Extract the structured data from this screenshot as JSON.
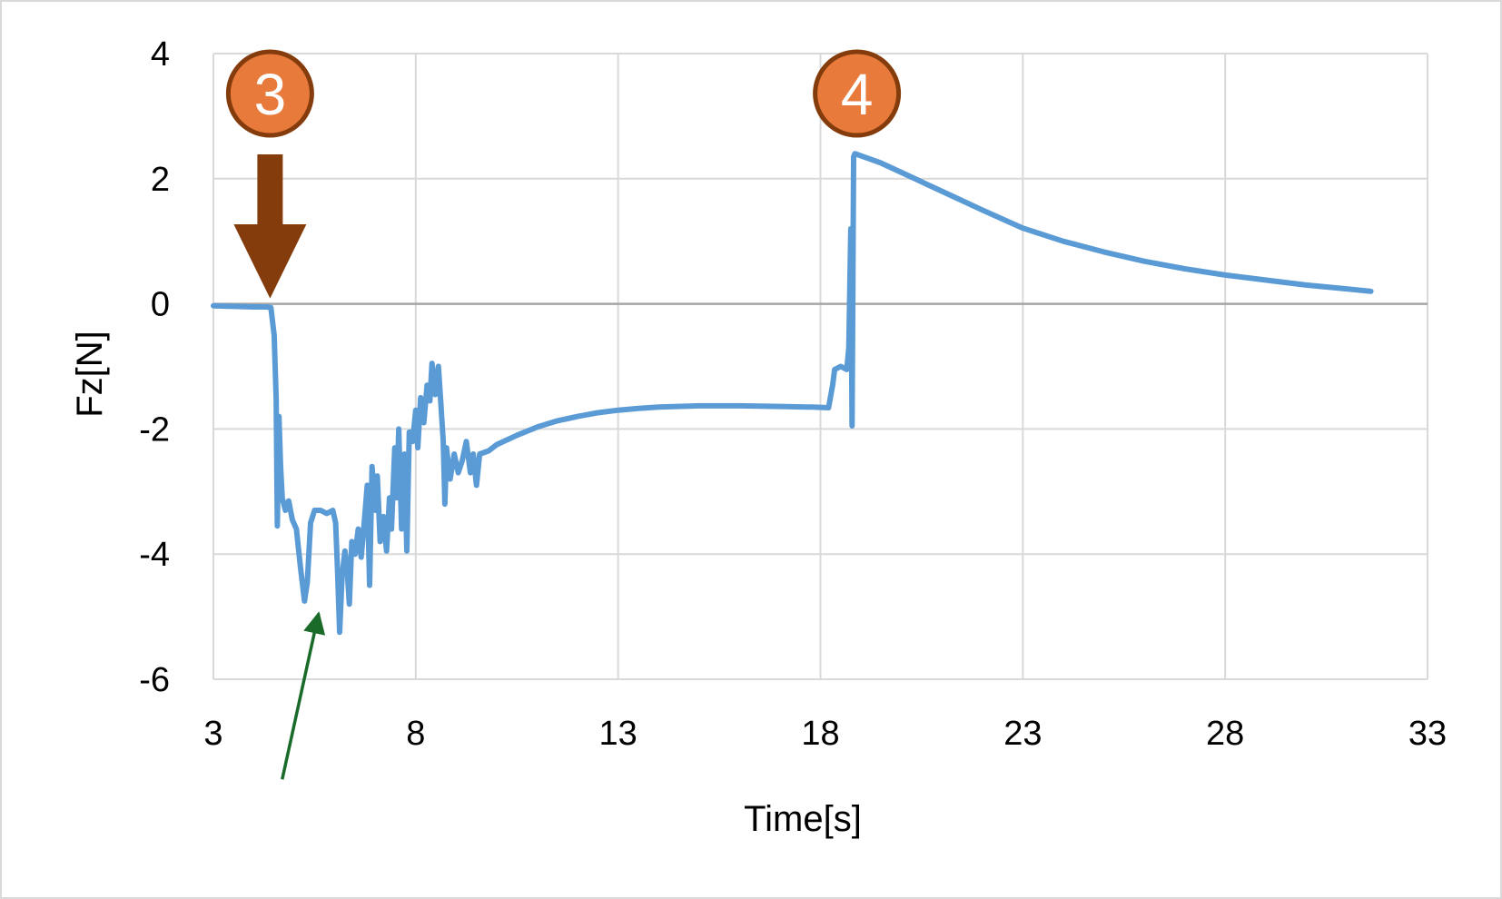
{
  "chart_data": {
    "type": "line",
    "title": "",
    "xlabel": "Time[s]",
    "ylabel": "Fz[N]",
    "xlim": [
      3,
      33
    ],
    "ylim": [
      -6,
      4
    ],
    "x_ticks": [
      "3",
      "8",
      "13",
      "18",
      "23",
      "28",
      "33"
    ],
    "y_ticks": [
      "4",
      "2",
      "0",
      "-2",
      "-4",
      "-6"
    ],
    "grid": true,
    "legend": "none",
    "series": [
      {
        "color": "#5b9bd5",
        "points": [
          [
            3.0,
            -0.03
          ],
          [
            3.5,
            -0.04
          ],
          [
            4.0,
            -0.05
          ],
          [
            4.3,
            -0.05
          ],
          [
            4.42,
            -0.06
          ],
          [
            4.5,
            -0.5
          ],
          [
            4.55,
            -1.5
          ],
          [
            4.58,
            -3.55
          ],
          [
            4.62,
            -1.8
          ],
          [
            4.66,
            -2.6
          ],
          [
            4.7,
            -3.1
          ],
          [
            4.78,
            -3.3
          ],
          [
            4.86,
            -3.15
          ],
          [
            4.95,
            -3.45
          ],
          [
            5.05,
            -3.6
          ],
          [
            5.15,
            -4.2
          ],
          [
            5.25,
            -4.75
          ],
          [
            5.32,
            -4.45
          ],
          [
            5.4,
            -3.5
          ],
          [
            5.5,
            -3.3
          ],
          [
            5.65,
            -3.3
          ],
          [
            5.8,
            -3.35
          ],
          [
            5.95,
            -3.3
          ],
          [
            6.02,
            -3.5
          ],
          [
            6.07,
            -4.3
          ],
          [
            6.12,
            -5.25
          ],
          [
            6.18,
            -4.35
          ],
          [
            6.25,
            -3.95
          ],
          [
            6.3,
            -4.2
          ],
          [
            6.36,
            -4.8
          ],
          [
            6.42,
            -3.8
          ],
          [
            6.5,
            -4.0
          ],
          [
            6.58,
            -3.6
          ],
          [
            6.65,
            -4.05
          ],
          [
            6.72,
            -3.55
          ],
          [
            6.8,
            -2.9
          ],
          [
            6.86,
            -4.5
          ],
          [
            6.92,
            -2.6
          ],
          [
            7.0,
            -3.3
          ],
          [
            7.05,
            -2.75
          ],
          [
            7.12,
            -3.8
          ],
          [
            7.2,
            -3.4
          ],
          [
            7.28,
            -3.95
          ],
          [
            7.35,
            -3.1
          ],
          [
            7.4,
            -3.6
          ],
          [
            7.48,
            -2.3
          ],
          [
            7.53,
            -3.1
          ],
          [
            7.58,
            -2.0
          ],
          [
            7.65,
            -3.6
          ],
          [
            7.72,
            -2.4
          ],
          [
            7.78,
            -3.95
          ],
          [
            7.84,
            -2.05
          ],
          [
            7.92,
            -2.2
          ],
          [
            8.0,
            -1.7
          ],
          [
            8.05,
            -2.3
          ],
          [
            8.12,
            -1.5
          ],
          [
            8.2,
            -1.9
          ],
          [
            8.28,
            -1.3
          ],
          [
            8.35,
            -1.55
          ],
          [
            8.4,
            -0.95
          ],
          [
            8.48,
            -1.45
          ],
          [
            8.56,
            -1.0
          ],
          [
            8.62,
            -1.6
          ],
          [
            8.68,
            -2.2
          ],
          [
            8.72,
            -3.2
          ],
          [
            8.76,
            -2.3
          ],
          [
            8.85,
            -2.8
          ],
          [
            8.95,
            -2.4
          ],
          [
            9.05,
            -2.7
          ],
          [
            9.15,
            -2.5
          ],
          [
            9.25,
            -2.2
          ],
          [
            9.35,
            -2.7
          ],
          [
            9.42,
            -2.4
          ],
          [
            9.5,
            -2.9
          ],
          [
            9.58,
            -2.4
          ],
          [
            9.8,
            -2.35
          ],
          [
            10.0,
            -2.25
          ],
          [
            10.5,
            -2.1
          ],
          [
            11.0,
            -1.97
          ],
          [
            11.5,
            -1.87
          ],
          [
            12.0,
            -1.8
          ],
          [
            12.5,
            -1.74
          ],
          [
            13.0,
            -1.7
          ],
          [
            13.5,
            -1.67
          ],
          [
            14.0,
            -1.65
          ],
          [
            15.0,
            -1.63
          ],
          [
            16.0,
            -1.63
          ],
          [
            17.0,
            -1.64
          ],
          [
            17.8,
            -1.65
          ],
          [
            18.2,
            -1.66
          ],
          [
            18.3,
            -1.3
          ],
          [
            18.35,
            -1.05
          ],
          [
            18.5,
            -1.0
          ],
          [
            18.65,
            -1.05
          ],
          [
            18.7,
            -0.7
          ],
          [
            18.75,
            1.2
          ],
          [
            18.78,
            -1.95
          ],
          [
            18.82,
            2.35
          ],
          [
            18.85,
            2.4
          ],
          [
            19.5,
            2.25
          ],
          [
            20.0,
            2.1
          ],
          [
            21.0,
            1.8
          ],
          [
            22.0,
            1.5
          ],
          [
            23.0,
            1.21
          ],
          [
            24.0,
            1.0
          ],
          [
            25.0,
            0.83
          ],
          [
            26.0,
            0.68
          ],
          [
            27.0,
            0.56
          ],
          [
            28.0,
            0.46
          ],
          [
            29.0,
            0.38
          ],
          [
            30.0,
            0.3
          ],
          [
            31.0,
            0.24
          ],
          [
            31.6,
            0.2
          ]
        ]
      }
    ],
    "annotations": [
      {
        "label": "3",
        "kind": "marker-with-down-arrow",
        "x": 4.4,
        "color": "#e87a3c",
        "arrow_color": "#843c0c"
      },
      {
        "label": "4",
        "kind": "marker",
        "x": 18.9,
        "color": "#e87a3c"
      },
      {
        "label": "",
        "kind": "arrow",
        "from": [
          4.7,
          -7.6
        ],
        "to": [
          5.6,
          -4.95
        ],
        "color": "#1a6b2a"
      }
    ]
  }
}
